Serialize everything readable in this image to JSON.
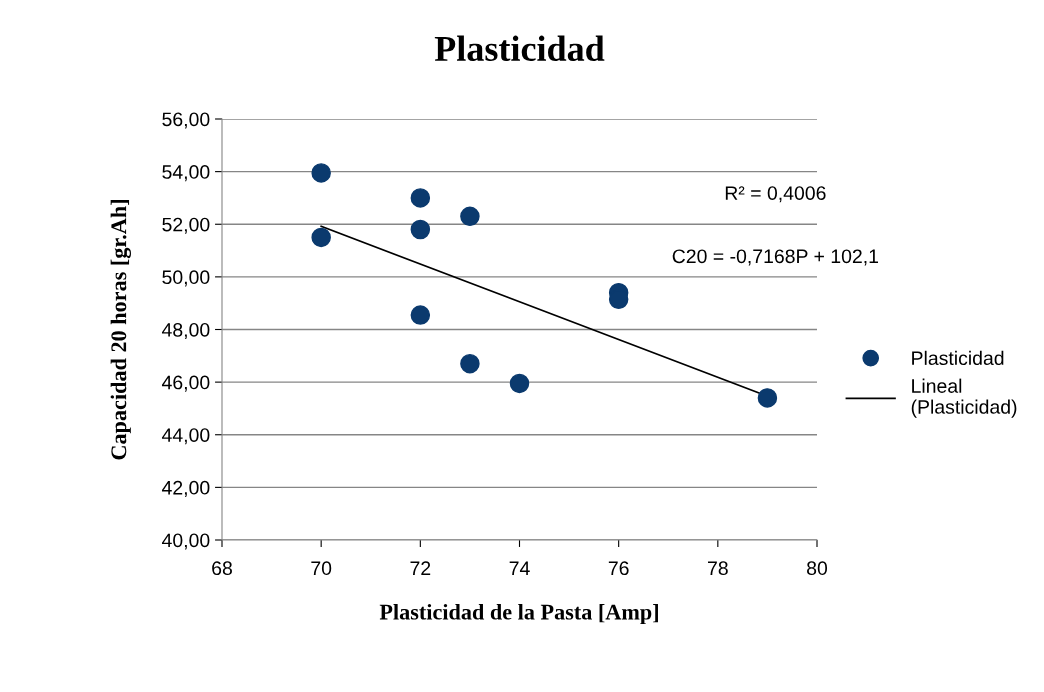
{
  "chart_data": {
    "type": "scatter",
    "title": "Plasticidad",
    "xlabel": "Plasticidad de la Pasta [Amp]",
    "ylabel": "Capacidad 20 horas [gr.Ah]",
    "xlim": [
      68,
      80
    ],
    "xticks": [
      68,
      70,
      72,
      74,
      76,
      78,
      80
    ],
    "ylim": [
      40,
      56
    ],
    "yticks": [
      {
        "value": 40,
        "label": "40,00"
      },
      {
        "value": 42,
        "label": "42,00"
      },
      {
        "value": 44,
        "label": "44,00"
      },
      {
        "value": 46,
        "label": "46,00"
      },
      {
        "value": 48,
        "label": "48,00"
      },
      {
        "value": 50,
        "label": "50,00"
      },
      {
        "value": 52,
        "label": "52,00"
      },
      {
        "value": 54,
        "label": "54,00"
      },
      {
        "value": 56,
        "label": "56,00"
      }
    ],
    "grid": "y",
    "legend": "right",
    "series": [
      {
        "name": "Plasticidad",
        "marker": "circle",
        "color": "#0b3a6e",
        "x": [
          70,
          70,
          72,
          72,
          72,
          73,
          73,
          74,
          76,
          76,
          79
        ],
        "values": [
          53.95,
          51.5,
          53.0,
          51.8,
          48.55,
          52.3,
          46.7,
          45.95,
          49.4,
          49.15,
          45.4
        ]
      },
      {
        "name": "Lineal\n(Plasticidad)",
        "type": "line",
        "marker": "none",
        "color": "#000000",
        "x": [
          70,
          79
        ],
        "values": [
          51.92,
          45.47
        ]
      }
    ],
    "annotations": [
      "R² = 0,4006",
      "C20 = -0,7168P + 102,1"
    ]
  }
}
